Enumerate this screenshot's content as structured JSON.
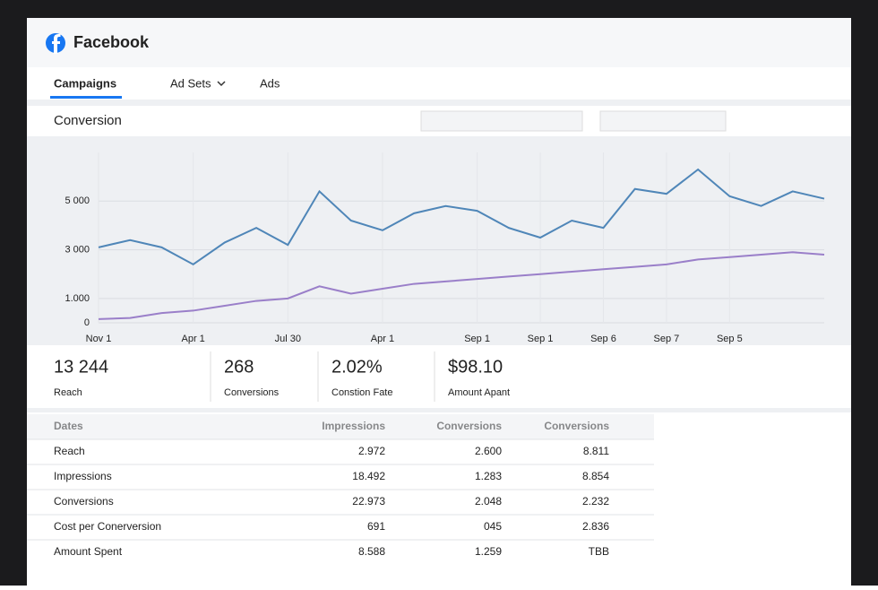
{
  "header": {
    "title": "Facebook"
  },
  "tabs": [
    "Campaigns",
    "Ad Sets",
    "Ads"
  ],
  "section": {
    "title": "Conversion"
  },
  "chart_data": {
    "type": "line",
    "categories": [
      "Nov 1",
      null,
      null,
      "Apr 1",
      null,
      null,
      "Jul 30",
      null,
      null,
      "Apr 1",
      null,
      null,
      "Sep 1",
      null,
      "Sep 1",
      null,
      "Sep 6",
      null,
      "Sep 7",
      null,
      "Sep 5",
      null,
      null,
      null
    ],
    "series": [
      {
        "color": "#4f86b8",
        "values": [
          3100,
          3400,
          3100,
          2400,
          3300,
          3900,
          3200,
          5400,
          4200,
          3800,
          4500,
          4800,
          4600,
          3900,
          3500,
          4200,
          3900,
          5500,
          5300,
          6300,
          5200,
          4800,
          5400,
          5100
        ]
      },
      {
        "color": "#9a7fc9",
        "values": [
          150,
          200,
          400,
          500,
          700,
          900,
          1000,
          1500,
          1200,
          1400,
          1600,
          1700,
          1800,
          1900,
          2000,
          2100,
          2200,
          2300,
          2400,
          2600,
          2700,
          2800,
          2900,
          2800
        ]
      }
    ],
    "ylim": [
      0,
      7000
    ],
    "yticks": [
      0,
      {
        "value": 1000,
        "label": "1.000"
      },
      {
        "value": 3000,
        "label": "3 000"
      },
      {
        "value": 5000,
        "label": "5 000"
      }
    ],
    "grid": true
  },
  "stats": [
    {
      "value": "13 244",
      "label": "Reach"
    },
    {
      "value": "268",
      "label": "Conversions"
    },
    {
      "value": "2.02%",
      "label": "Constion Fate"
    },
    {
      "value": "$98.10",
      "label": "Amount Apant"
    }
  ],
  "table": {
    "header": [
      "Dates",
      "Impressions",
      "Conversions",
      "Conversions"
    ],
    "rows": [
      [
        "Reach",
        "2.972",
        "2.600",
        "8.811"
      ],
      [
        "Impressions",
        "18.492",
        "1.283",
        "8.854"
      ],
      [
        "Conversions",
        "22.973",
        "2.048",
        "2.232"
      ],
      [
        "Cost per Conerversion",
        "691",
        "045",
        "2.836"
      ],
      [
        "Amount Spent",
        "8.588",
        "1.259",
        "TBB"
      ]
    ]
  }
}
